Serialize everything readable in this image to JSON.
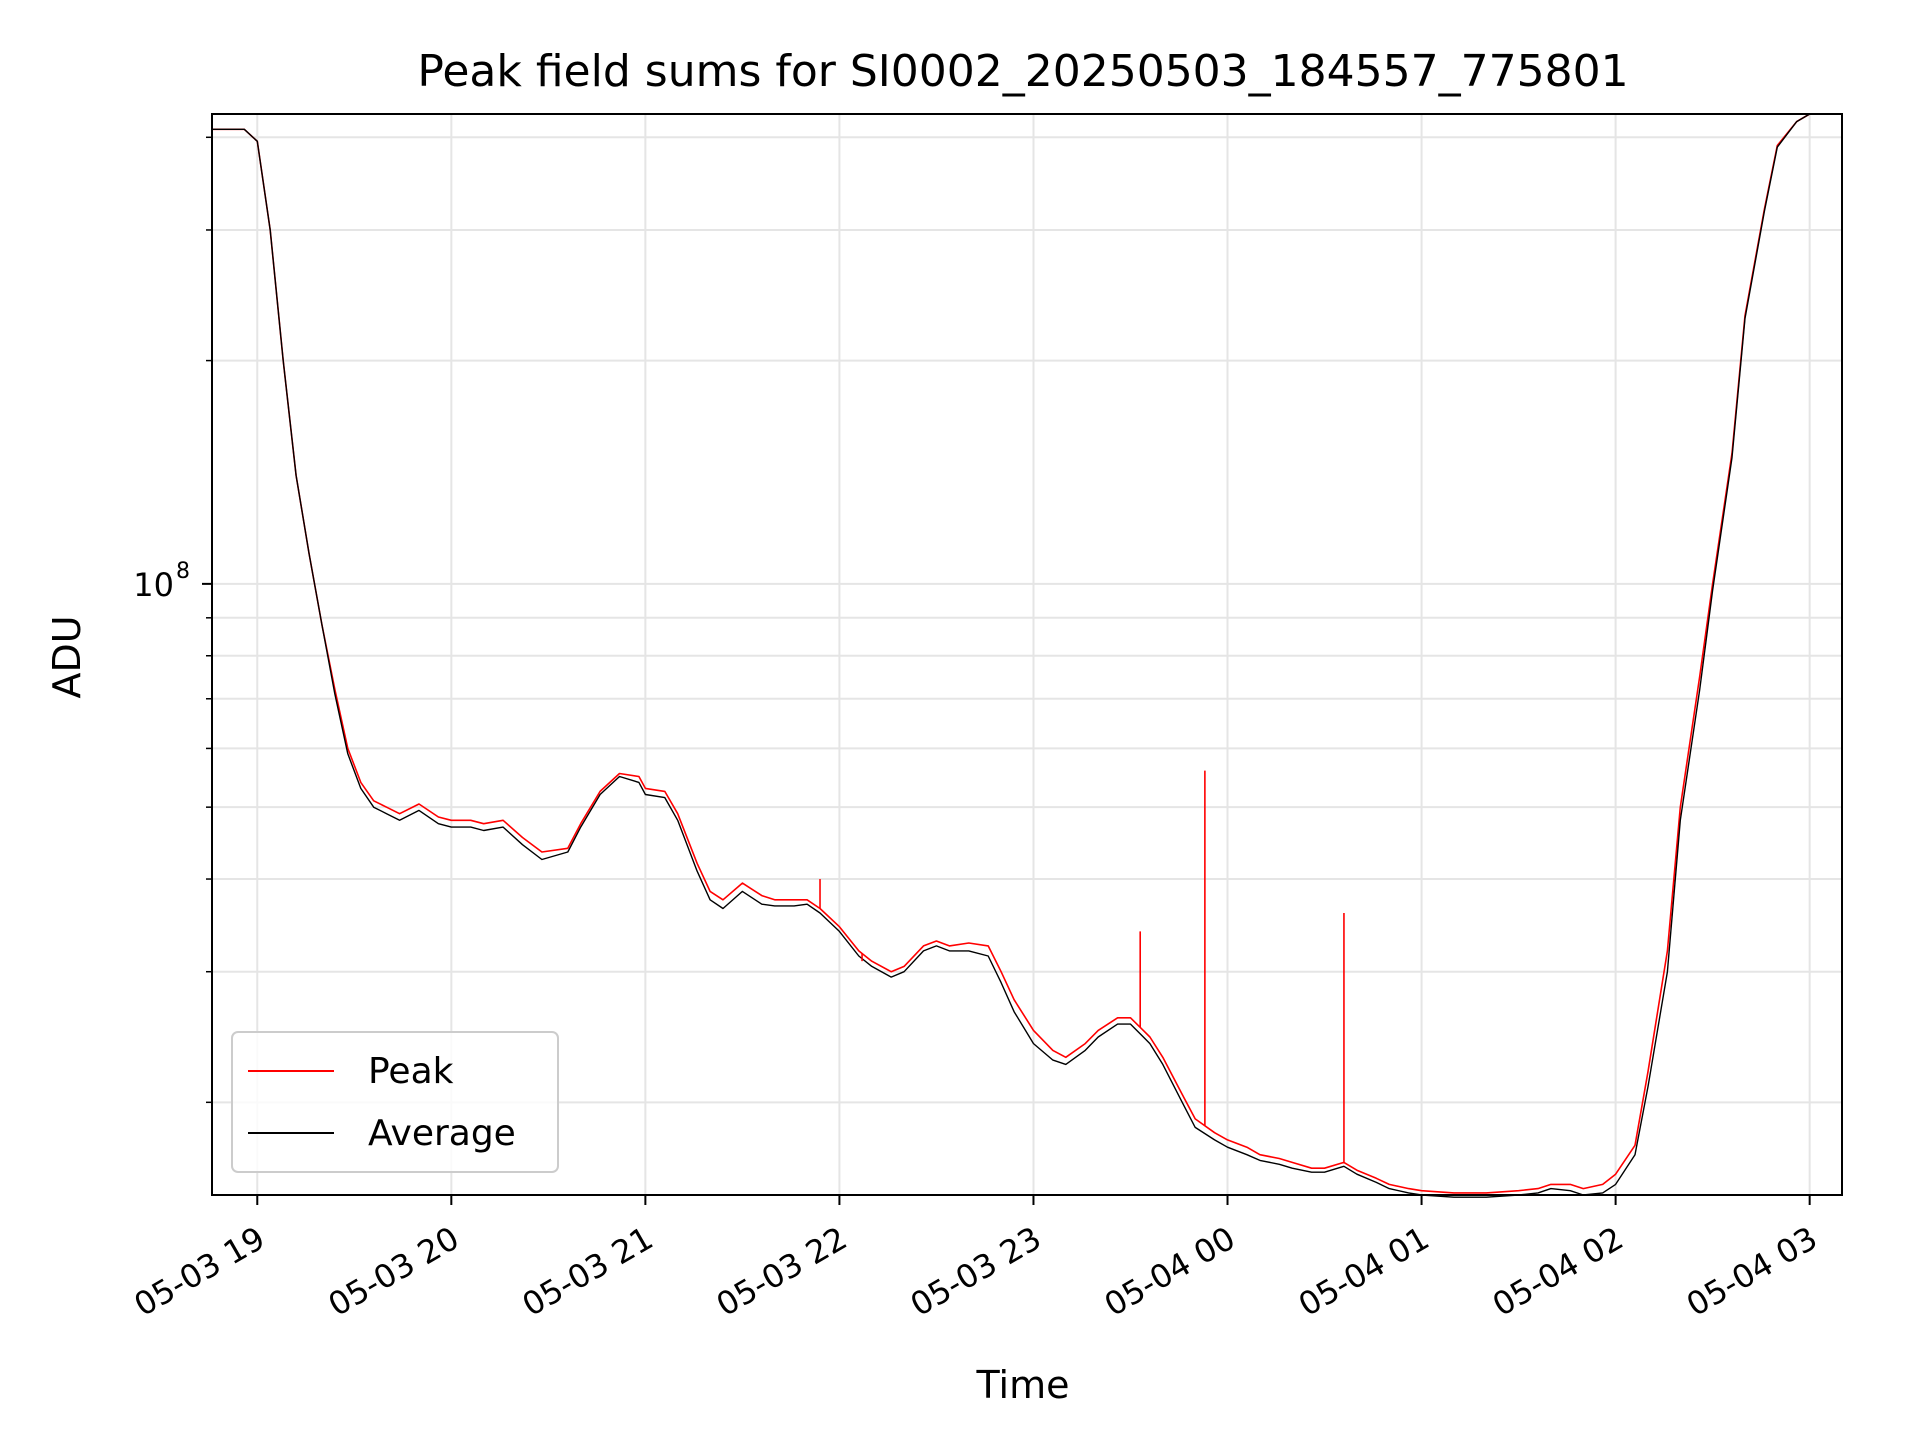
{
  "chart_data": {
    "type": "line",
    "title": "Peak field sums for SI0002_20250503_184557_775801",
    "xlabel": "Time",
    "ylabel": "ADU",
    "y_scale": "log",
    "ylim": [
      15000000,
      430000000
    ],
    "xlim": [
      "2025-05-03 18:46",
      "2025-05-04 03:10"
    ],
    "x_ticks": [
      "05-03 19",
      "05-03 20",
      "05-03 21",
      "05-03 22",
      "05-03 23",
      "05-04 00",
      "05-04 01",
      "05-04 02",
      "05-04 03"
    ],
    "y_major_tick": {
      "value": 100000000,
      "base": "10",
      "exp": "8"
    },
    "grid": true,
    "legend_position": "lower-left",
    "series": [
      {
        "name": "Peak",
        "color": "#ff0000",
        "x": [
          "2025-05-03 18:46",
          "2025-05-03 18:56",
          "2025-05-03 19:00",
          "2025-05-03 19:04",
          "2025-05-03 19:08",
          "2025-05-03 19:12",
          "2025-05-03 19:16",
          "2025-05-03 19:20",
          "2025-05-03 19:24",
          "2025-05-03 19:28",
          "2025-05-03 19:32",
          "2025-05-03 19:36",
          "2025-05-03 19:40",
          "2025-05-03 19:44",
          "2025-05-03 19:50",
          "2025-05-03 19:56",
          "2025-05-03 20:00",
          "2025-05-03 20:06",
          "2025-05-03 20:10",
          "2025-05-03 20:16",
          "2025-05-03 20:22",
          "2025-05-03 20:28",
          "2025-05-03 20:36",
          "2025-05-03 20:40",
          "2025-05-03 20:46",
          "2025-05-03 20:52",
          "2025-05-03 20:58",
          "2025-05-03 21:00",
          "2025-05-03 21:06",
          "2025-05-03 21:10",
          "2025-05-03 21:16",
          "2025-05-03 21:20",
          "2025-05-03 21:24",
          "2025-05-03 21:30",
          "2025-05-03 21:36",
          "2025-05-03 21:40",
          "2025-05-03 21:46",
          "2025-05-03 21:50",
          "2025-05-03 21:54",
          "2025-05-03 22:00",
          "2025-05-03 22:06",
          "2025-05-03 22:10",
          "2025-05-03 22:16",
          "2025-05-03 22:20",
          "2025-05-03 22:26",
          "2025-05-03 22:30",
          "2025-05-03 22:34",
          "2025-05-03 22:40",
          "2025-05-03 22:46",
          "2025-05-03 22:50",
          "2025-05-03 22:54",
          "2025-05-03 23:00",
          "2025-05-03 23:06",
          "2025-05-03 23:10",
          "2025-05-03 23:16",
          "2025-05-03 23:20",
          "2025-05-03 23:26",
          "2025-05-03 23:30",
          "2025-05-03 23:36",
          "2025-05-03 23:40",
          "2025-05-03 23:46",
          "2025-05-03 23:50",
          "2025-05-03 23:56",
          "2025-05-04 00:00",
          "2025-05-04 00:06",
          "2025-05-04 00:10",
          "2025-05-04 00:16",
          "2025-05-04 00:20",
          "2025-05-04 00:26",
          "2025-05-04 00:30",
          "2025-05-04 00:36",
          "2025-05-04 00:40",
          "2025-05-04 00:46",
          "2025-05-04 00:50",
          "2025-05-04 00:56",
          "2025-05-04 01:00",
          "2025-05-04 01:10",
          "2025-05-04 01:20",
          "2025-05-04 01:30",
          "2025-05-04 01:36",
          "2025-05-04 01:40",
          "2025-05-04 01:46",
          "2025-05-04 01:50",
          "2025-05-04 01:56",
          "2025-05-04 02:00",
          "2025-05-04 02:06",
          "2025-05-04 02:10",
          "2025-05-04 02:16",
          "2025-05-04 02:20",
          "2025-05-04 02:26",
          "2025-05-04 02:30",
          "2025-05-04 02:36",
          "2025-05-04 02:40",
          "2025-05-04 02:46",
          "2025-05-04 02:50",
          "2025-05-04 02:56",
          "2025-05-04 03:00",
          "2025-05-04 03:04"
        ],
        "y": [
          410000000,
          410000000,
          395000000,
          300000000,
          200000000,
          140000000,
          110000000,
          88000000,
          72000000,
          60000000,
          54000000,
          51000000,
          50000000,
          49000000,
          50500000,
          48500000,
          48000000,
          48000000,
          47500000,
          48000000,
          45500000,
          43500000,
          44000000,
          47500000,
          52500000,
          55500000,
          55000000,
          53000000,
          52500000,
          49000000,
          42000000,
          38500000,
          37500000,
          39500000,
          38000000,
          37500000,
          37500000,
          37500000,
          36500000,
          34500000,
          32000000,
          31000000,
          30000000,
          30500000,
          32500000,
          33000000,
          32500000,
          32800000,
          32500000,
          30000000,
          27500000,
          25000000,
          23500000,
          23000000,
          24000000,
          25000000,
          26000000,
          26000000,
          24500000,
          23000000,
          20500000,
          19000000,
          18200000,
          17800000,
          17400000,
          17000000,
          16800000,
          16600000,
          16300000,
          16300000,
          16600000,
          16200000,
          15800000,
          15500000,
          15300000,
          15200000,
          15100000,
          15100000,
          15200000,
          15300000,
          15500000,
          15500000,
          15300000,
          15500000,
          16000000,
          17500000,
          22000000,
          32000000,
          50000000,
          75000000,
          100000000,
          150000000,
          230000000,
          320000000,
          390000000,
          420000000,
          430000000,
          430000000
        ]
      },
      {
        "name": "Average",
        "color": "#000000",
        "x": [
          "2025-05-03 18:46",
          "2025-05-03 18:56",
          "2025-05-03 19:00",
          "2025-05-03 19:04",
          "2025-05-03 19:08",
          "2025-05-03 19:12",
          "2025-05-03 19:16",
          "2025-05-03 19:20",
          "2025-05-03 19:24",
          "2025-05-03 19:28",
          "2025-05-03 19:32",
          "2025-05-03 19:36",
          "2025-05-03 19:40",
          "2025-05-03 19:44",
          "2025-05-03 19:50",
          "2025-05-03 19:56",
          "2025-05-03 20:00",
          "2025-05-03 20:06",
          "2025-05-03 20:10",
          "2025-05-03 20:16",
          "2025-05-03 20:22",
          "2025-05-03 20:28",
          "2025-05-03 20:36",
          "2025-05-03 20:40",
          "2025-05-03 20:46",
          "2025-05-03 20:52",
          "2025-05-03 20:58",
          "2025-05-03 21:00",
          "2025-05-03 21:06",
          "2025-05-03 21:10",
          "2025-05-03 21:16",
          "2025-05-03 21:20",
          "2025-05-03 21:24",
          "2025-05-03 21:30",
          "2025-05-03 21:36",
          "2025-05-03 21:40",
          "2025-05-03 21:46",
          "2025-05-03 21:50",
          "2025-05-03 21:54",
          "2025-05-03 22:00",
          "2025-05-03 22:06",
          "2025-05-03 22:10",
          "2025-05-03 22:16",
          "2025-05-03 22:20",
          "2025-05-03 22:26",
          "2025-05-03 22:30",
          "2025-05-03 22:34",
          "2025-05-03 22:40",
          "2025-05-03 22:46",
          "2025-05-03 22:50",
          "2025-05-03 22:54",
          "2025-05-03 23:00",
          "2025-05-03 23:06",
          "2025-05-03 23:10",
          "2025-05-03 23:16",
          "2025-05-03 23:20",
          "2025-05-03 23:26",
          "2025-05-03 23:30",
          "2025-05-03 23:36",
          "2025-05-03 23:40",
          "2025-05-03 23:46",
          "2025-05-03 23:50",
          "2025-05-03 23:56",
          "2025-05-04 00:00",
          "2025-05-04 00:06",
          "2025-05-04 00:10",
          "2025-05-04 00:16",
          "2025-05-04 00:20",
          "2025-05-04 00:26",
          "2025-05-04 00:30",
          "2025-05-04 00:36",
          "2025-05-04 00:40",
          "2025-05-04 00:46",
          "2025-05-04 00:50",
          "2025-05-04 00:56",
          "2025-05-04 01:00",
          "2025-05-04 01:10",
          "2025-05-04 01:20",
          "2025-05-04 01:30",
          "2025-05-04 01:36",
          "2025-05-04 01:40",
          "2025-05-04 01:46",
          "2025-05-04 01:50",
          "2025-05-04 01:56",
          "2025-05-04 02:00",
          "2025-05-04 02:06",
          "2025-05-04 02:10",
          "2025-05-04 02:16",
          "2025-05-04 02:20",
          "2025-05-04 02:26",
          "2025-05-04 02:30",
          "2025-05-04 02:36",
          "2025-05-04 02:40",
          "2025-05-04 02:46",
          "2025-05-04 02:50",
          "2025-05-04 02:56",
          "2025-05-04 03:00",
          "2025-05-04 03:04"
        ],
        "y": [
          410000000,
          410000000,
          395000000,
          300000000,
          200000000,
          140000000,
          110000000,
          88000000,
          71000000,
          59000000,
          53000000,
          50000000,
          49000000,
          48000000,
          49500000,
          47500000,
          47000000,
          47000000,
          46500000,
          47000000,
          44500000,
          42500000,
          43500000,
          47000000,
          52000000,
          55000000,
          54000000,
          52000000,
          51500000,
          48000000,
          41000000,
          37500000,
          36500000,
          38500000,
          37000000,
          36800000,
          36800000,
          37000000,
          36000000,
          34000000,
          31500000,
          30500000,
          29500000,
          30000000,
          32000000,
          32500000,
          32000000,
          32000000,
          31500000,
          29000000,
          26500000,
          24000000,
          22800000,
          22500000,
          23500000,
          24500000,
          25500000,
          25500000,
          24000000,
          22500000,
          20000000,
          18500000,
          17800000,
          17400000,
          17000000,
          16700000,
          16500000,
          16300000,
          16100000,
          16100000,
          16400000,
          16000000,
          15600000,
          15300000,
          15100000,
          15000000,
          14900000,
          14900000,
          15000000,
          15100000,
          15300000,
          15200000,
          15000000,
          15100000,
          15500000,
          17000000,
          21000000,
          30000000,
          48000000,
          72000000,
          98000000,
          148000000,
          228000000,
          318000000,
          388000000,
          420000000,
          430000000,
          430000000
        ]
      }
    ],
    "spikes": {
      "series": "Peak",
      "x": [
        "2025-05-03 21:54",
        "2025-05-03 22:07",
        "2025-05-03 23:33",
        "2025-05-03 23:53",
        "2025-05-04 00:36"
      ],
      "y": [
        40000000,
        31000000,
        34000000,
        56000000,
        36000000
      ]
    }
  }
}
